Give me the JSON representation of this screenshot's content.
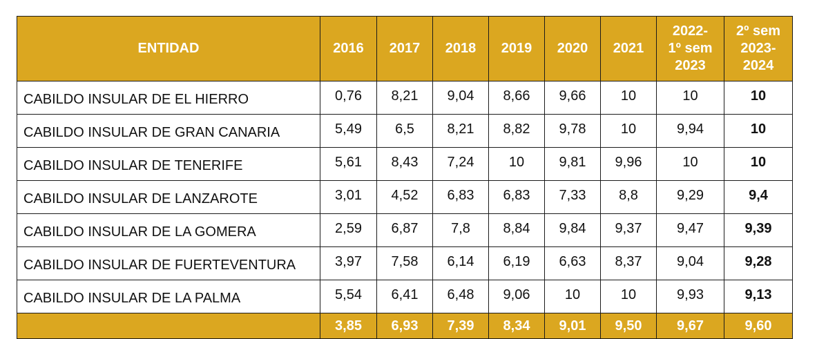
{
  "table": {
    "header": {
      "entity": "ENTIDAD",
      "years": [
        "2016",
        "2017",
        "2018",
        "2019",
        "2020",
        "2021"
      ],
      "period_a": [
        "2022-",
        "1º sem",
        "2023"
      ],
      "period_b": [
        "2º sem",
        "2023-",
        "2024"
      ]
    },
    "rows": [
      {
        "entity": "CABILDO INSULAR DE EL HIERRO",
        "values": [
          "0,76",
          "8,21",
          "9,04",
          "8,66",
          "9,66",
          "10",
          "10",
          "10"
        ]
      },
      {
        "entity": "CABILDO INSULAR DE GRAN CANARIA",
        "values": [
          "5,49",
          "6,5",
          "8,21",
          "8,82",
          "9,78",
          "10",
          "9,94",
          "10"
        ]
      },
      {
        "entity": "CABILDO INSULAR DE TENERIFE",
        "values": [
          "5,61",
          "8,43",
          "7,24",
          "10",
          "9,81",
          "9,96",
          "10",
          "10"
        ]
      },
      {
        "entity": "CABILDO INSULAR DE LANZAROTE",
        "values": [
          "3,01",
          "4,52",
          "6,83",
          "6,83",
          "7,33",
          "8,8",
          "9,29",
          "9,4"
        ]
      },
      {
        "entity": "CABILDO INSULAR DE LA GOMERA",
        "values": [
          "2,59",
          "6,87",
          "7,8",
          "8,84",
          "9,84",
          "9,37",
          "9,47",
          "9,39"
        ]
      },
      {
        "entity": "CABILDO INSULAR DE FUERTEVENTURA",
        "values": [
          "3,97",
          "7,58",
          "6,14",
          "6,19",
          "6,63",
          "8,37",
          "9,04",
          "9,28"
        ]
      },
      {
        "entity": "CABILDO INSULAR DE LA PALMA",
        "values": [
          "5,54",
          "6,41",
          "6,48",
          "9,06",
          "10",
          "10",
          "9,93",
          "9,13"
        ]
      }
    ],
    "footer": {
      "label": "",
      "values": [
        "3,85",
        "6,93",
        "7,39",
        "8,34",
        "9,01",
        "9,50",
        "9,67",
        "9,60"
      ]
    },
    "colors": {
      "header_bg": "#dba720",
      "header_text": "#ffffff",
      "border": "#1a1a1a",
      "body_text": "#111111"
    }
  }
}
